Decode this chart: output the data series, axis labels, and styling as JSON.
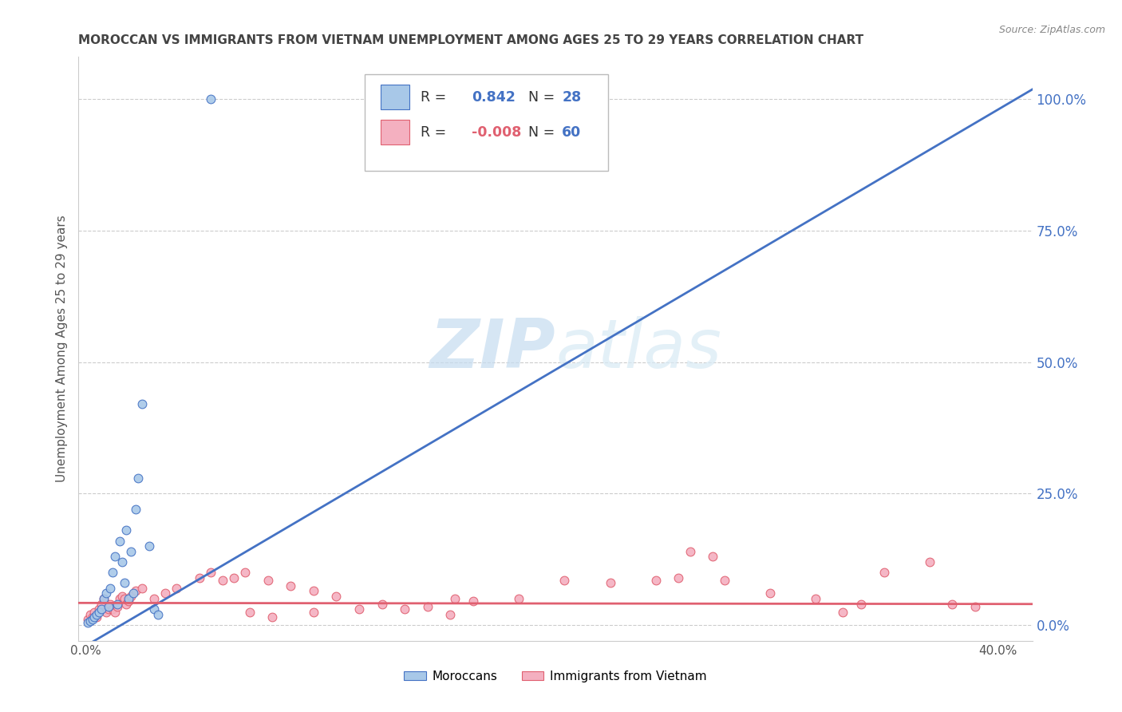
{
  "title": "MOROCCAN VS IMMIGRANTS FROM VIETNAM UNEMPLOYMENT AMONG AGES 25 TO 29 YEARS CORRELATION CHART",
  "source": "Source: ZipAtlas.com",
  "ylabel_left": "Unemployment Among Ages 25 to 29 years",
  "ylabel_right_ticks": [
    0.0,
    0.25,
    0.5,
    0.75,
    1.0
  ],
  "ylabel_right_labels": [
    "0.0%",
    "25.0%",
    "50.0%",
    "75.0%",
    "100.0%"
  ],
  "xlabel_ticks": [
    0.0,
    0.05,
    0.1,
    0.15,
    0.2,
    0.25,
    0.3,
    0.35,
    0.4
  ],
  "xlim": [
    -0.003,
    0.415
  ],
  "ylim": [
    -0.03,
    1.08
  ],
  "moroccans_x": [
    0.001,
    0.002,
    0.003,
    0.004,
    0.005,
    0.006,
    0.007,
    0.008,
    0.009,
    0.01,
    0.011,
    0.012,
    0.013,
    0.014,
    0.015,
    0.016,
    0.017,
    0.018,
    0.019,
    0.02,
    0.021,
    0.022,
    0.023,
    0.025,
    0.028,
    0.03,
    0.032,
    0.055
  ],
  "moroccans_y": [
    0.005,
    0.008,
    0.01,
    0.015,
    0.02,
    0.025,
    0.03,
    0.05,
    0.06,
    0.035,
    0.07,
    0.1,
    0.13,
    0.04,
    0.16,
    0.12,
    0.08,
    0.18,
    0.05,
    0.14,
    0.06,
    0.22,
    0.28,
    0.42,
    0.15,
    0.03,
    0.02,
    1.0
  ],
  "vietnam_x": [
    0.001,
    0.002,
    0.003,
    0.004,
    0.005,
    0.006,
    0.007,
    0.008,
    0.009,
    0.01,
    0.011,
    0.012,
    0.013,
    0.014,
    0.015,
    0.016,
    0.017,
    0.018,
    0.019,
    0.02,
    0.022,
    0.025,
    0.03,
    0.035,
    0.04,
    0.05,
    0.055,
    0.06,
    0.065,
    0.07,
    0.08,
    0.09,
    0.1,
    0.11,
    0.13,
    0.15,
    0.17,
    0.19,
    0.21,
    0.23,
    0.25,
    0.26,
    0.28,
    0.3,
    0.32,
    0.34,
    0.35,
    0.37,
    0.38,
    0.39,
    0.265,
    0.275,
    0.14,
    0.16,
    0.1,
    0.12,
    0.072,
    0.082,
    0.162,
    0.332
  ],
  "vietnam_y": [
    0.01,
    0.02,
    0.015,
    0.025,
    0.015,
    0.03,
    0.04,
    0.05,
    0.025,
    0.03,
    0.04,
    0.03,
    0.025,
    0.035,
    0.05,
    0.055,
    0.05,
    0.04,
    0.045,
    0.055,
    0.065,
    0.07,
    0.05,
    0.06,
    0.07,
    0.09,
    0.1,
    0.085,
    0.09,
    0.1,
    0.085,
    0.075,
    0.065,
    0.055,
    0.04,
    0.035,
    0.045,
    0.05,
    0.085,
    0.08,
    0.085,
    0.09,
    0.085,
    0.06,
    0.05,
    0.04,
    0.1,
    0.12,
    0.04,
    0.035,
    0.14,
    0.13,
    0.03,
    0.02,
    0.025,
    0.03,
    0.025,
    0.015,
    0.05,
    0.025
  ],
  "moroccans_color": "#A8C8E8",
  "vietnam_color": "#F4B0C0",
  "moroccans_line_color": "#4472C4",
  "vietnam_line_color": "#E06070",
  "R_moroccan": "0.842",
  "N_moroccan": "28",
  "R_vietnam": "-0.008",
  "N_vietnam": "60",
  "legend_moroccan": "Moroccans",
  "legend_vietnam": "Immigrants from Vietnam",
  "watermark_zip": "ZIP",
  "watermark_atlas": "atlas",
  "background_color": "#FFFFFF",
  "grid_color": "#CCCCCC",
  "title_color": "#444444",
  "right_axis_color": "#4472C4",
  "marker_size": 60
}
